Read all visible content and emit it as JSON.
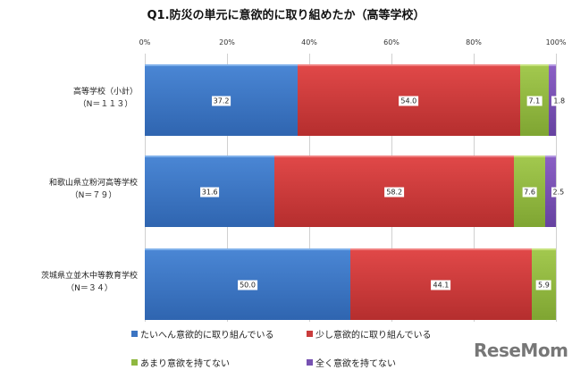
{
  "chart_data": {
    "type": "bar",
    "orientation": "horizontal-stacked-100",
    "title": "Q1.防災の単元に意欲的に取り組めたか（高等学校）",
    "xlabel": "",
    "ylabel": "",
    "xlim": [
      0,
      100
    ],
    "x_ticks": [
      "0%",
      "20%",
      "40%",
      "60%",
      "80%",
      "100%"
    ],
    "grid": true,
    "legend_position": "bottom",
    "categories": [
      {
        "name": "高等学校（小計）",
        "n": "（N＝１１３）"
      },
      {
        "name": "和歌山県立粉河高等学校",
        "n": "（N＝７９）"
      },
      {
        "name": "茨城県立並木中等教育学校",
        "n": "（N＝３４）"
      }
    ],
    "series": [
      {
        "name": "たいへん意欲的に取り組んでいる",
        "color": "#3b74c2",
        "values": [
          37.2,
          31.6,
          50.0
        ],
        "labels": [
          "37.2",
          "31.6",
          "50.0"
        ]
      },
      {
        "name": "少し意欲的に取り組んでいる",
        "color": "#c93c3c",
        "values": [
          54.0,
          58.2,
          44.1
        ],
        "labels": [
          "54.0",
          "58.2",
          "44.1"
        ]
      },
      {
        "name": "あまり意欲を持てない",
        "color": "#8fb840",
        "values": [
          7.1,
          7.6,
          5.9
        ],
        "labels": [
          "7.1",
          "7.6",
          "5.9"
        ]
      },
      {
        "name": "全く意欲を持てない",
        "color": "#7752b2",
        "values": [
          1.8,
          2.5,
          0.0
        ],
        "labels": [
          "1.8",
          "2.5",
          ""
        ]
      }
    ]
  },
  "watermark": "ReseMom"
}
